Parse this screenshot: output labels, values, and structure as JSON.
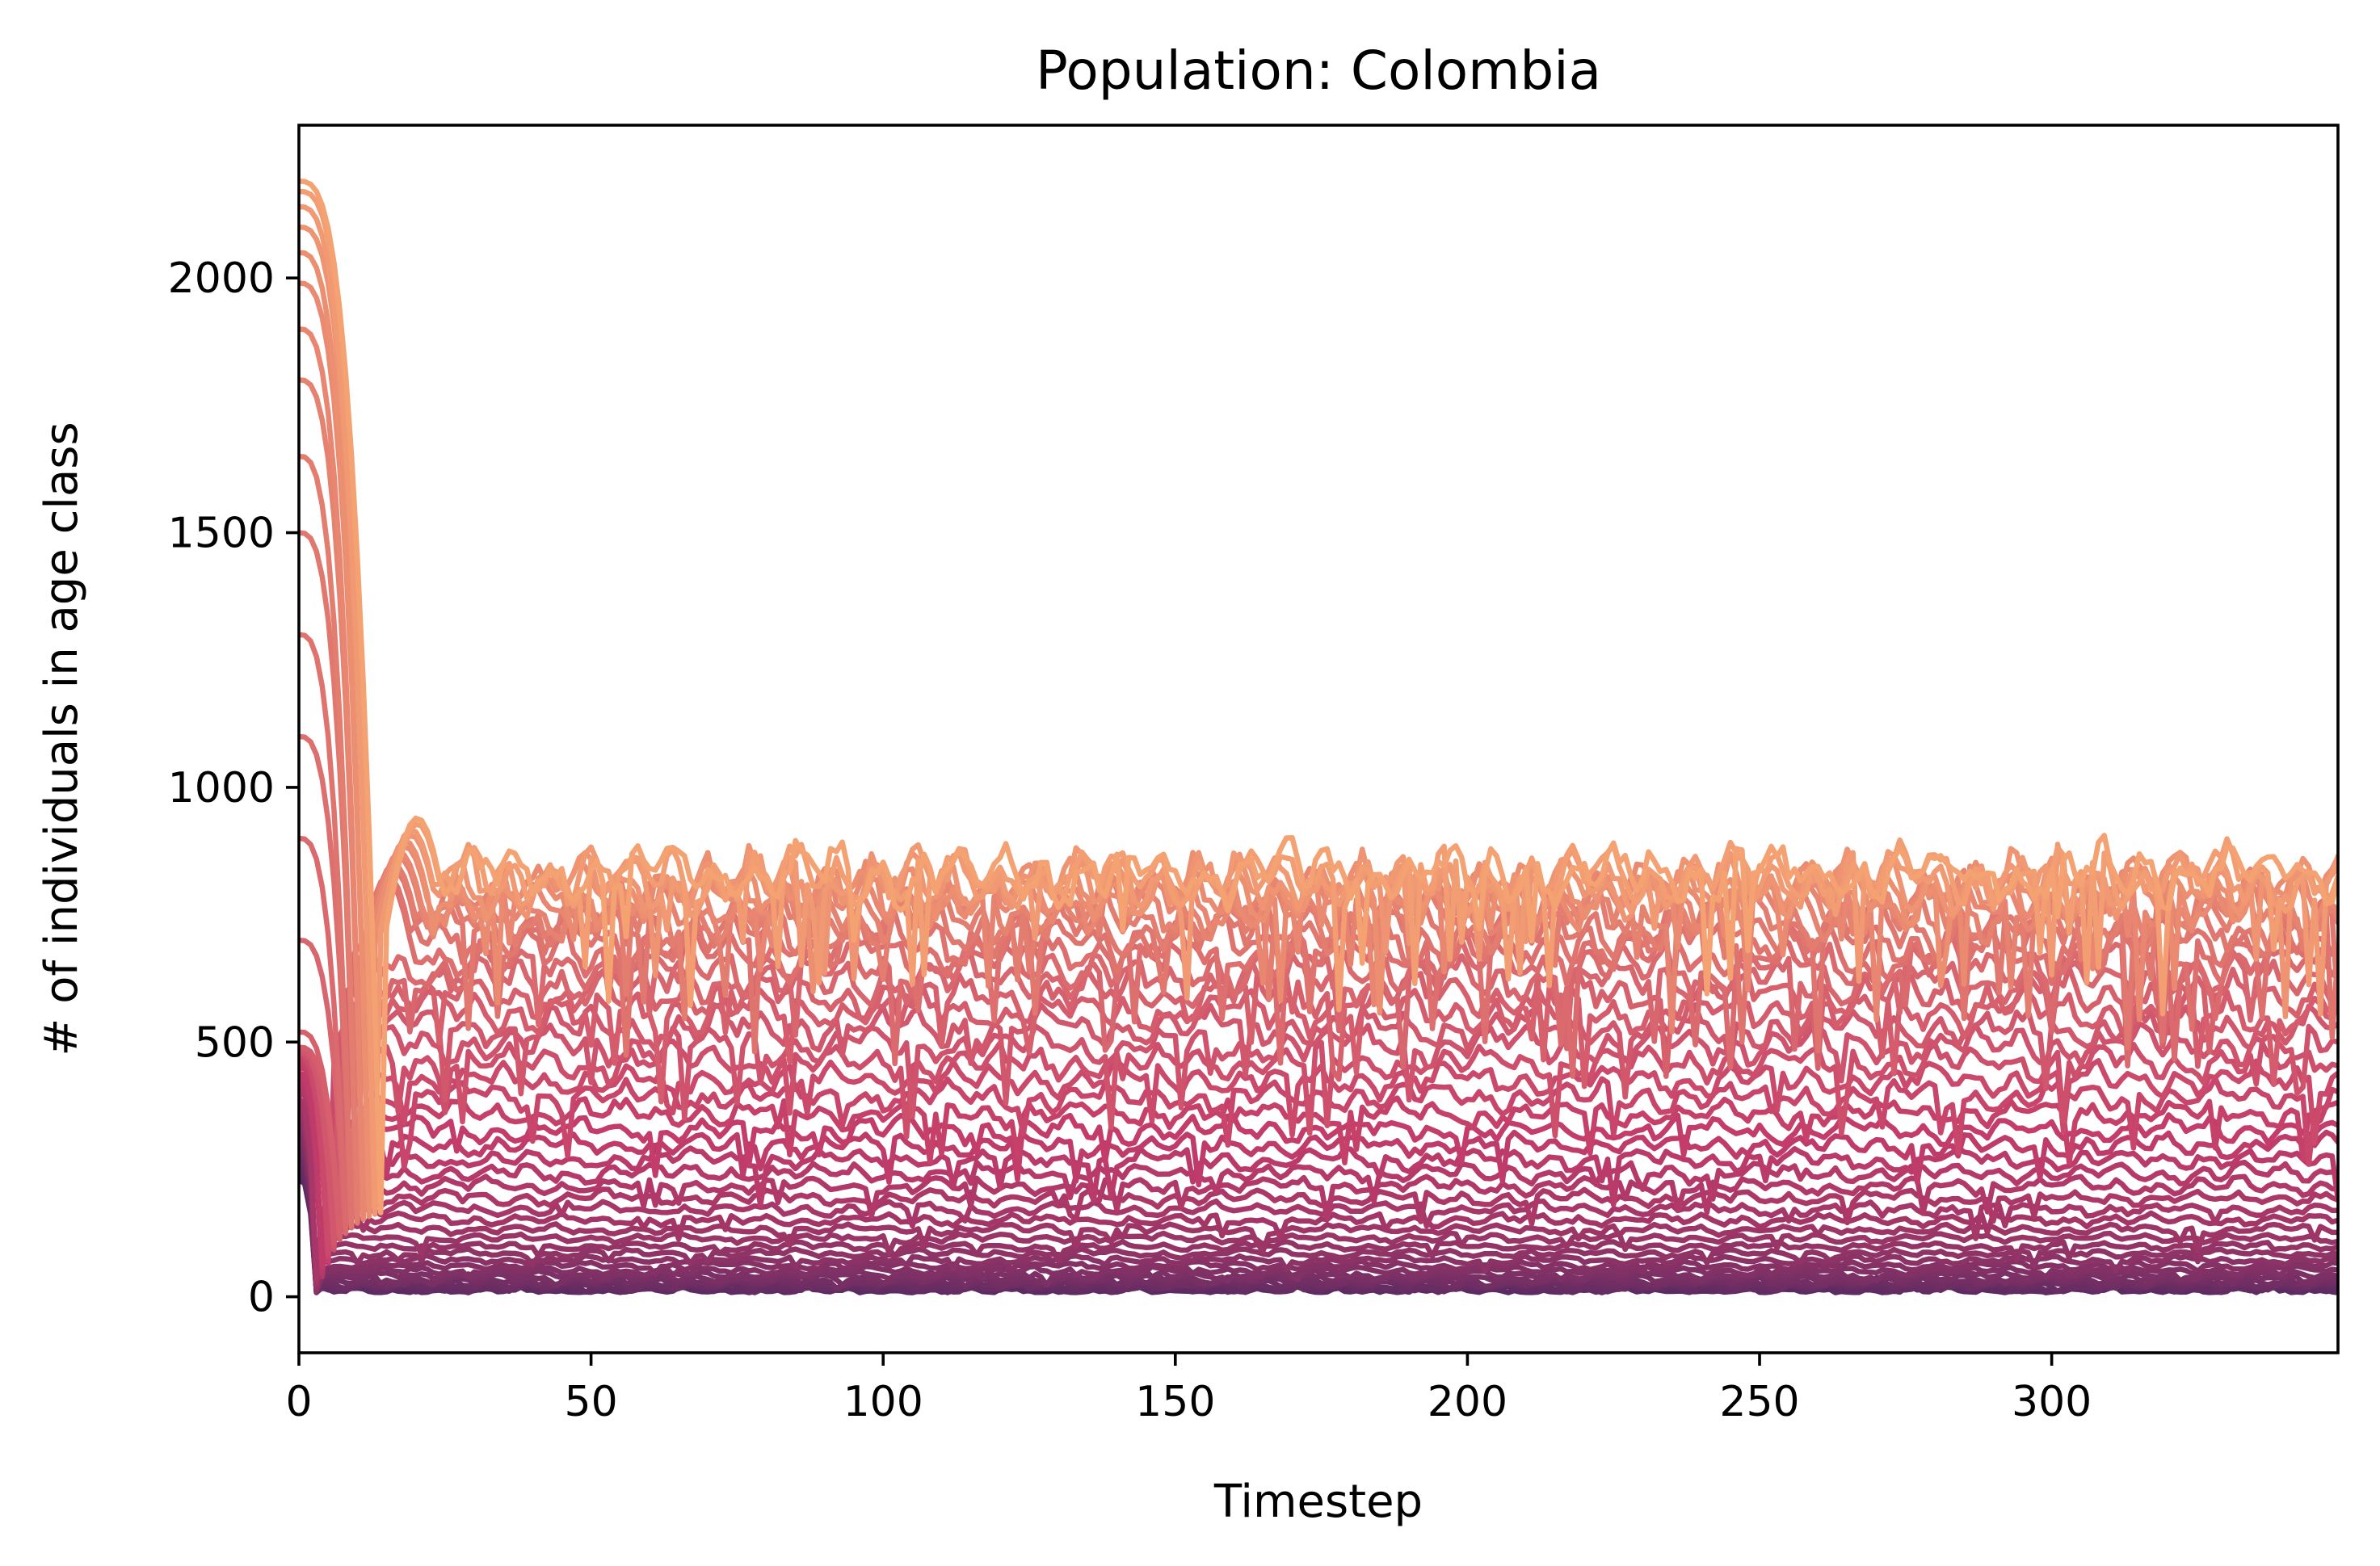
{
  "chart_data": {
    "type": "line",
    "title": "Population: Colombia",
    "xlabel": "Timestep",
    "ylabel": "# of individuals in age class",
    "xlim": [
      0,
      349
    ],
    "ylim": [
      -110,
      2300
    ],
    "xticks": [
      0,
      50,
      100,
      150,
      200,
      250,
      300
    ],
    "yticks": [
      0,
      500,
      1000,
      1500,
      2000
    ],
    "grid": false,
    "legend": "none",
    "n_timesteps": 349,
    "colormap_endpoints": [
      "#5b2a62",
      "#c43c6a",
      "#f5a273"
    ],
    "series_summary": {
      "count": 45,
      "description_values": {
        "youngest_class_initial_peak": 2190,
        "initial_peak_duration_timesteps": 14,
        "secondary_peak": 940,
        "steady_state_band_upper": 830,
        "steady_state_band_lower": 10
      },
      "steady_state_levels": [
        830,
        825,
        818,
        810,
        800,
        788,
        775,
        760,
        742,
        722,
        700,
        676,
        650,
        622,
        592,
        560,
        527,
        494,
        460,
        426,
        393,
        360,
        328,
        298,
        270,
        243,
        218,
        194,
        172,
        151,
        132,
        115,
        99,
        85,
        72,
        61,
        51,
        43,
        36,
        30,
        25,
        21,
        17,
        14,
        11
      ],
      "initial_values": [
        2190,
        2170,
        2140,
        2100,
        2050,
        1990,
        1900,
        1800,
        1650,
        1500,
        1300,
        1100,
        900,
        700,
        520,
        490,
        485,
        480,
        478,
        475,
        470,
        460,
        450,
        440,
        430,
        420,
        410,
        400,
        390,
        380,
        370,
        360,
        350,
        340,
        330,
        320,
        310,
        300,
        290,
        280,
        270,
        260,
        250,
        240,
        230
      ],
      "drop_timesteps": [
        14,
        14,
        13,
        13,
        12,
        12,
        11,
        11,
        10,
        10,
        9,
        9,
        8,
        8,
        7,
        7,
        6,
        6,
        6,
        5,
        5,
        5,
        5,
        4,
        4,
        4,
        4,
        4,
        3,
        3,
        3,
        3,
        3,
        3,
        3,
        3,
        3,
        3,
        3,
        3,
        3,
        3,
        3,
        3,
        3
      ]
    }
  }
}
